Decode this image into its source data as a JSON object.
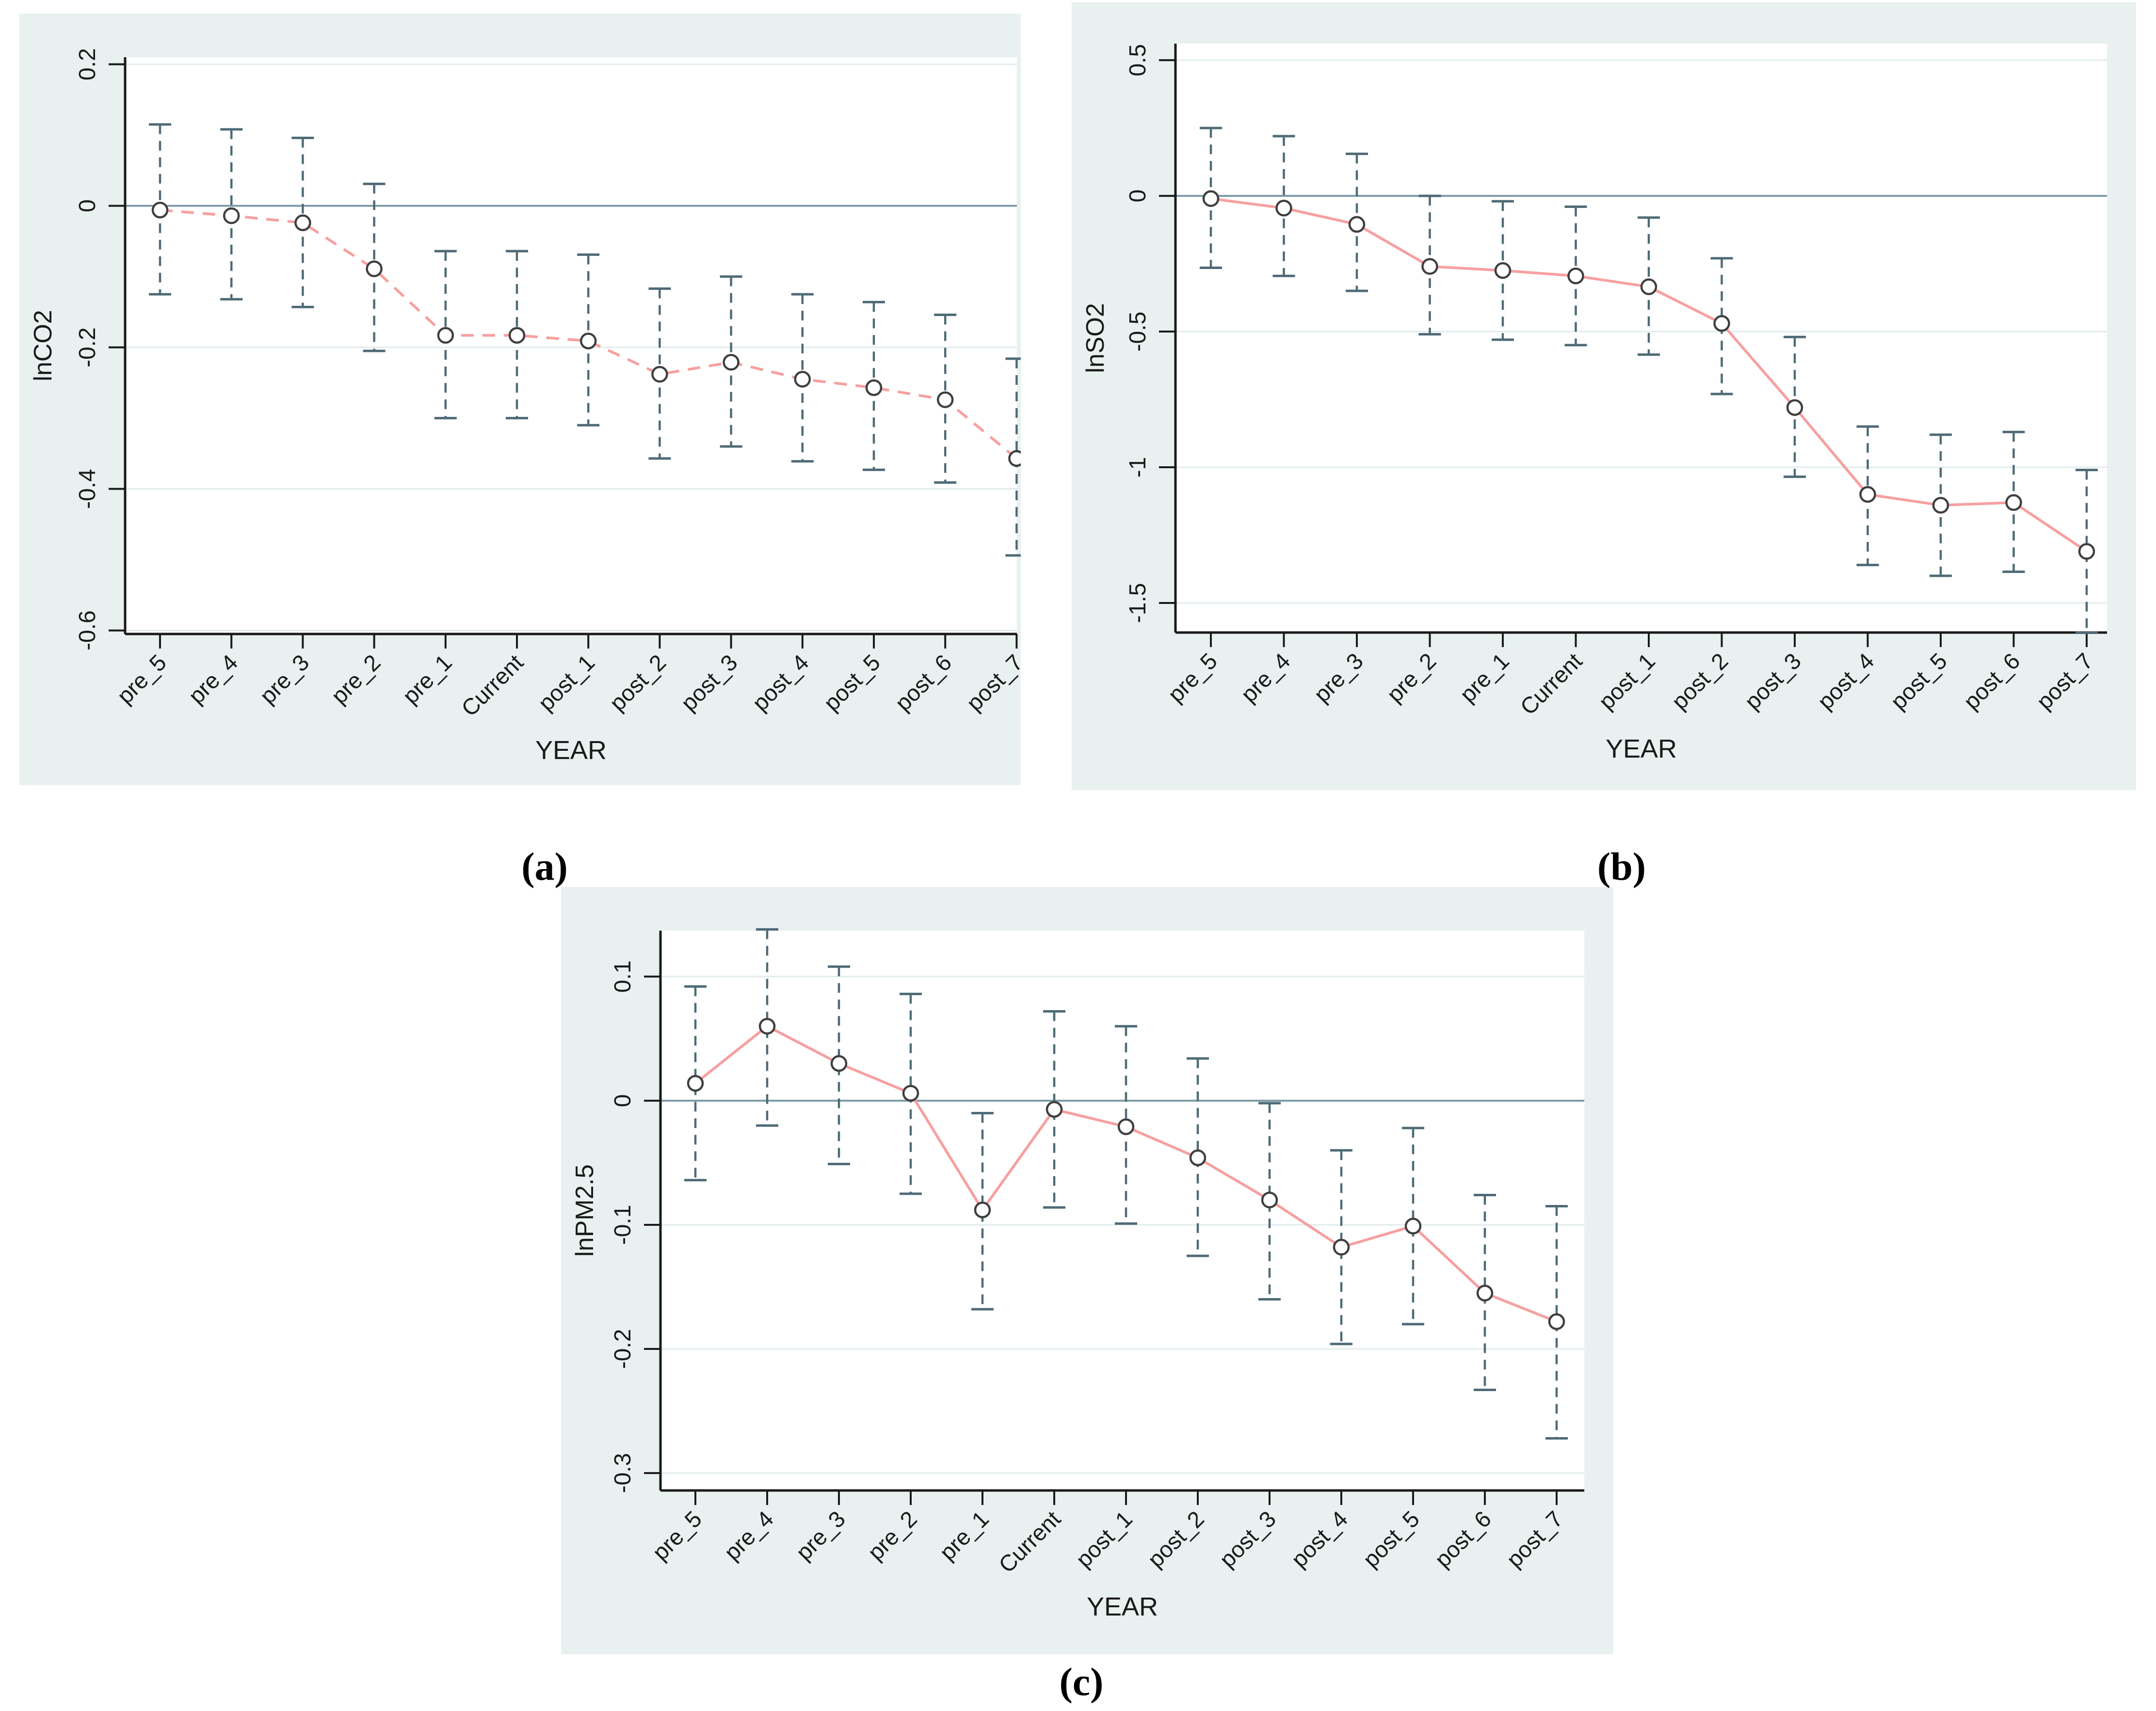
{
  "figure": {
    "colors": {
      "panel_background": "#e8f1f0",
      "plot_background": "#ffffff",
      "gridline": "#e2ecec",
      "zero_line": "#7d9aa8",
      "axis_line": "#1a1a1a",
      "tick_text": "#1a1a1a",
      "ci_bar": "#4e6a76",
      "connect_line": "#f79f9f",
      "marker_stroke": "#3f3f3f",
      "marker_fill": "#ffffff"
    }
  },
  "panels": {
    "a": {
      "label": "(a)"
    },
    "b": {
      "label": "(b)"
    },
    "c": {
      "label": "(c)"
    }
  },
  "chart_data": [
    {
      "id": "a",
      "type": "line",
      "subtype": "event-study with 95% CI error bars",
      "title": "",
      "xlabel": "YEAR",
      "ylabel": "lnCO2",
      "legend": "none",
      "grid": true,
      "line_style": "dashed",
      "categories": [
        "pre_5",
        "pre_4",
        "pre_3",
        "pre_2",
        "pre_1",
        "Current",
        "post_1",
        "post_2",
        "post_3",
        "post_4",
        "post_5",
        "post_6",
        "post_7"
      ],
      "estimates": [
        -0.006,
        -0.014,
        -0.024,
        -0.089,
        -0.183,
        -0.183,
        -0.191,
        -0.238,
        -0.221,
        -0.245,
        -0.257,
        -0.274,
        -0.357
      ],
      "ci_low": [
        -0.125,
        -0.132,
        -0.143,
        -0.205,
        -0.3,
        -0.3,
        -0.31,
        -0.357,
        -0.34,
        -0.361,
        -0.373,
        -0.391,
        -0.494
      ],
      "ci_high": [
        0.115,
        0.108,
        0.096,
        0.031,
        -0.064,
        -0.064,
        -0.069,
        -0.117,
        -0.1,
        -0.125,
        -0.136,
        -0.154,
        -0.216
      ],
      "yticks": [
        0.2,
        0,
        -0.2,
        -0.4,
        -0.6
      ],
      "ytick_labels": [
        "0.2",
        "0",
        "-0.2",
        "-0.4",
        "-0.6"
      ],
      "ylim": [
        -0.605,
        0.21
      ],
      "reference_line_y": 0
    },
    {
      "id": "b",
      "type": "line",
      "subtype": "event-study with 95% CI error bars",
      "title": "",
      "xlabel": "YEAR",
      "ylabel": "lnSO2",
      "legend": "none",
      "grid": true,
      "line_style": "solid",
      "categories": [
        "pre_5",
        "pre_4",
        "pre_3",
        "pre_2",
        "pre_1",
        "Current",
        "post_1",
        "post_2",
        "post_3",
        "post_4",
        "post_5",
        "post_6",
        "post_7"
      ],
      "estimates": [
        -0.01,
        -0.045,
        -0.105,
        -0.26,
        -0.275,
        -0.295,
        -0.335,
        -0.47,
        -0.78,
        -1.1,
        -1.14,
        -1.13,
        -1.31
      ],
      "ci_low": [
        -0.265,
        -0.295,
        -0.35,
        -0.51,
        -0.53,
        -0.55,
        -0.585,
        -0.73,
        -1.035,
        -1.36,
        -1.4,
        -1.385,
        -1.61
      ],
      "ci_high": [
        0.25,
        0.22,
        0.155,
        0.0,
        -0.02,
        -0.04,
        -0.08,
        -0.23,
        -0.52,
        -0.85,
        -0.88,
        -0.87,
        -1.01
      ],
      "yticks": [
        0.5,
        0,
        -0.5,
        -1,
        -1.5
      ],
      "ytick_labels": [
        "0.5",
        "0",
        "-0.5",
        "-1",
        "-1.5"
      ],
      "ylim": [
        -1.609,
        0.561
      ],
      "reference_line_y": 0
    },
    {
      "id": "c",
      "type": "line",
      "subtype": "event-study with 95% CI error bars",
      "title": "",
      "xlabel": "YEAR",
      "ylabel": "lnPM2.5",
      "legend": "none",
      "grid": true,
      "line_style": "solid",
      "categories": [
        "pre_5",
        "pre_4",
        "pre_3",
        "pre_2",
        "pre_1",
        "Current",
        "post_1",
        "post_2",
        "post_3",
        "post_4",
        "post_5",
        "post_6",
        "post_7"
      ],
      "estimates": [
        0.014,
        0.06,
        0.03,
        0.006,
        -0.088,
        -0.007,
        -0.021,
        -0.046,
        -0.08,
        -0.118,
        -0.101,
        -0.155,
        -0.178
      ],
      "ci_low": [
        -0.064,
        -0.02,
        -0.051,
        -0.075,
        -0.168,
        -0.086,
        -0.099,
        -0.125,
        -0.16,
        -0.196,
        -0.18,
        -0.233,
        -0.272
      ],
      "ci_high": [
        0.092,
        0.138,
        0.108,
        0.086,
        -0.01,
        0.072,
        0.06,
        0.034,
        -0.002,
        -0.04,
        -0.022,
        -0.076,
        -0.085
      ],
      "yticks": [
        0.1,
        0,
        -0.1,
        -0.2,
        -0.3
      ],
      "ytick_labels": [
        "0.1",
        "0",
        "-0.1",
        "-0.2",
        "-0.3"
      ],
      "ylim": [
        -0.314,
        0.137
      ],
      "reference_line_y": 0
    }
  ]
}
